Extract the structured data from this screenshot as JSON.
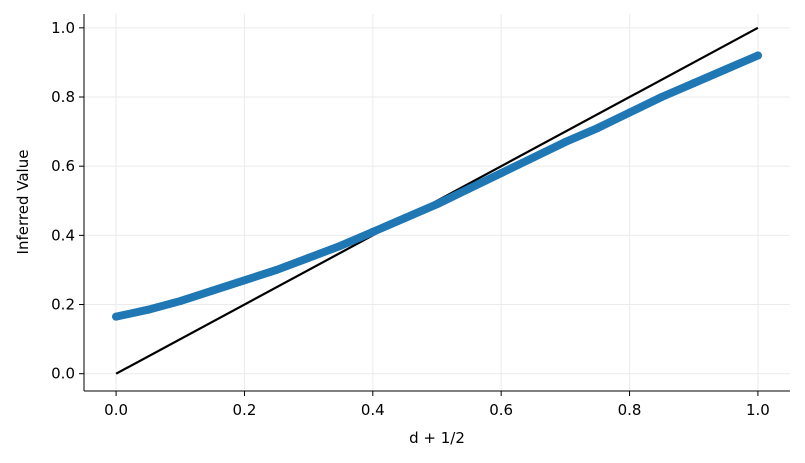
{
  "chart_data": {
    "type": "scatter",
    "xlabel": "d + 1/2",
    "ylabel": "Inferred Value",
    "xlim": [
      -0.05,
      1.05
    ],
    "ylim": [
      -0.05,
      1.04
    ],
    "xticks": [
      0.0,
      0.2,
      0.4,
      0.6,
      0.8,
      1.0
    ],
    "xtick_labels": [
      "0.0",
      "0.2",
      "0.4",
      "0.6",
      "0.8",
      "1.0"
    ],
    "yticks": [
      0.0,
      0.2,
      0.4,
      0.6,
      0.8,
      1.0
    ],
    "ytick_labels": [
      "0.0",
      "0.2",
      "0.4",
      "0.6",
      "0.8",
      "1.0"
    ],
    "grid": true,
    "legend": "none",
    "series": [
      {
        "kind": "scatter",
        "color": "#1f77b4",
        "x": [
          0.0,
          0.05,
          0.1,
          0.15,
          0.2,
          0.25,
          0.3,
          0.35,
          0.4,
          0.45,
          0.5,
          0.55,
          0.6,
          0.65,
          0.7,
          0.75,
          0.8,
          0.85,
          0.9,
          0.95,
          1.0
        ],
        "y": [
          0.165,
          0.185,
          0.21,
          0.24,
          0.27,
          0.3,
          0.335,
          0.37,
          0.41,
          0.45,
          0.49,
          0.535,
          0.58,
          0.625,
          0.67,
          0.71,
          0.755,
          0.8,
          0.84,
          0.88,
          0.92
        ]
      },
      {
        "kind": "line",
        "color": "#000000",
        "x": [
          0.0,
          1.0
        ],
        "y": [
          0.0,
          1.0
        ]
      }
    ]
  }
}
